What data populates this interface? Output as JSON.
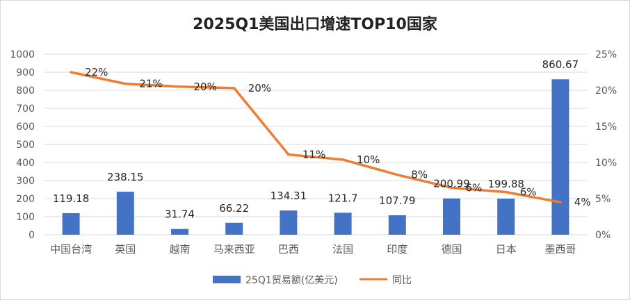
{
  "chart_data": {
    "type": "bar+line",
    "title": "2025Q1美国出口增速TOP10国家",
    "categories": [
      "中国台湾",
      "英国",
      "越南",
      "马来西亚",
      "巴西",
      "法国",
      "印度",
      "德国",
      "日本",
      "墨西哥"
    ],
    "series": [
      {
        "name": "25Q1贸易额(亿美元)",
        "type": "bar",
        "axis": "left",
        "color": "#4472C4",
        "values": [
          119.18,
          238.15,
          31.74,
          66.22,
          134.31,
          121.7,
          107.79,
          200.99,
          199.88,
          860.67
        ],
        "labels": [
          "119.18",
          "238.15",
          "31.74",
          "66.22",
          "134.31",
          "121.7",
          "107.79",
          "200.99",
          "199.88",
          "860.67"
        ]
      },
      {
        "name": "同比",
        "type": "line",
        "axis": "right",
        "color": "#ED7D31",
        "values": [
          0.225,
          0.209,
          0.205,
          0.203,
          0.111,
          0.104,
          0.083,
          0.065,
          0.059,
          0.045
        ],
        "labels": [
          "22%",
          "21%",
          "20%",
          "20%",
          "11%",
          "10%",
          "8%",
          "6%",
          "6%",
          "4%"
        ]
      }
    ],
    "y_left": {
      "min": 0,
      "max": 1000,
      "ticks": [
        "0",
        "100",
        "200",
        "300",
        "400",
        "500",
        "600",
        "700",
        "800",
        "900",
        "1000"
      ]
    },
    "y_right": {
      "min": 0,
      "max": 0.25,
      "ticks": [
        "0%",
        "5%",
        "10%",
        "15%",
        "20%",
        "25%"
      ]
    },
    "grid": true,
    "legend_position": "bottom"
  }
}
